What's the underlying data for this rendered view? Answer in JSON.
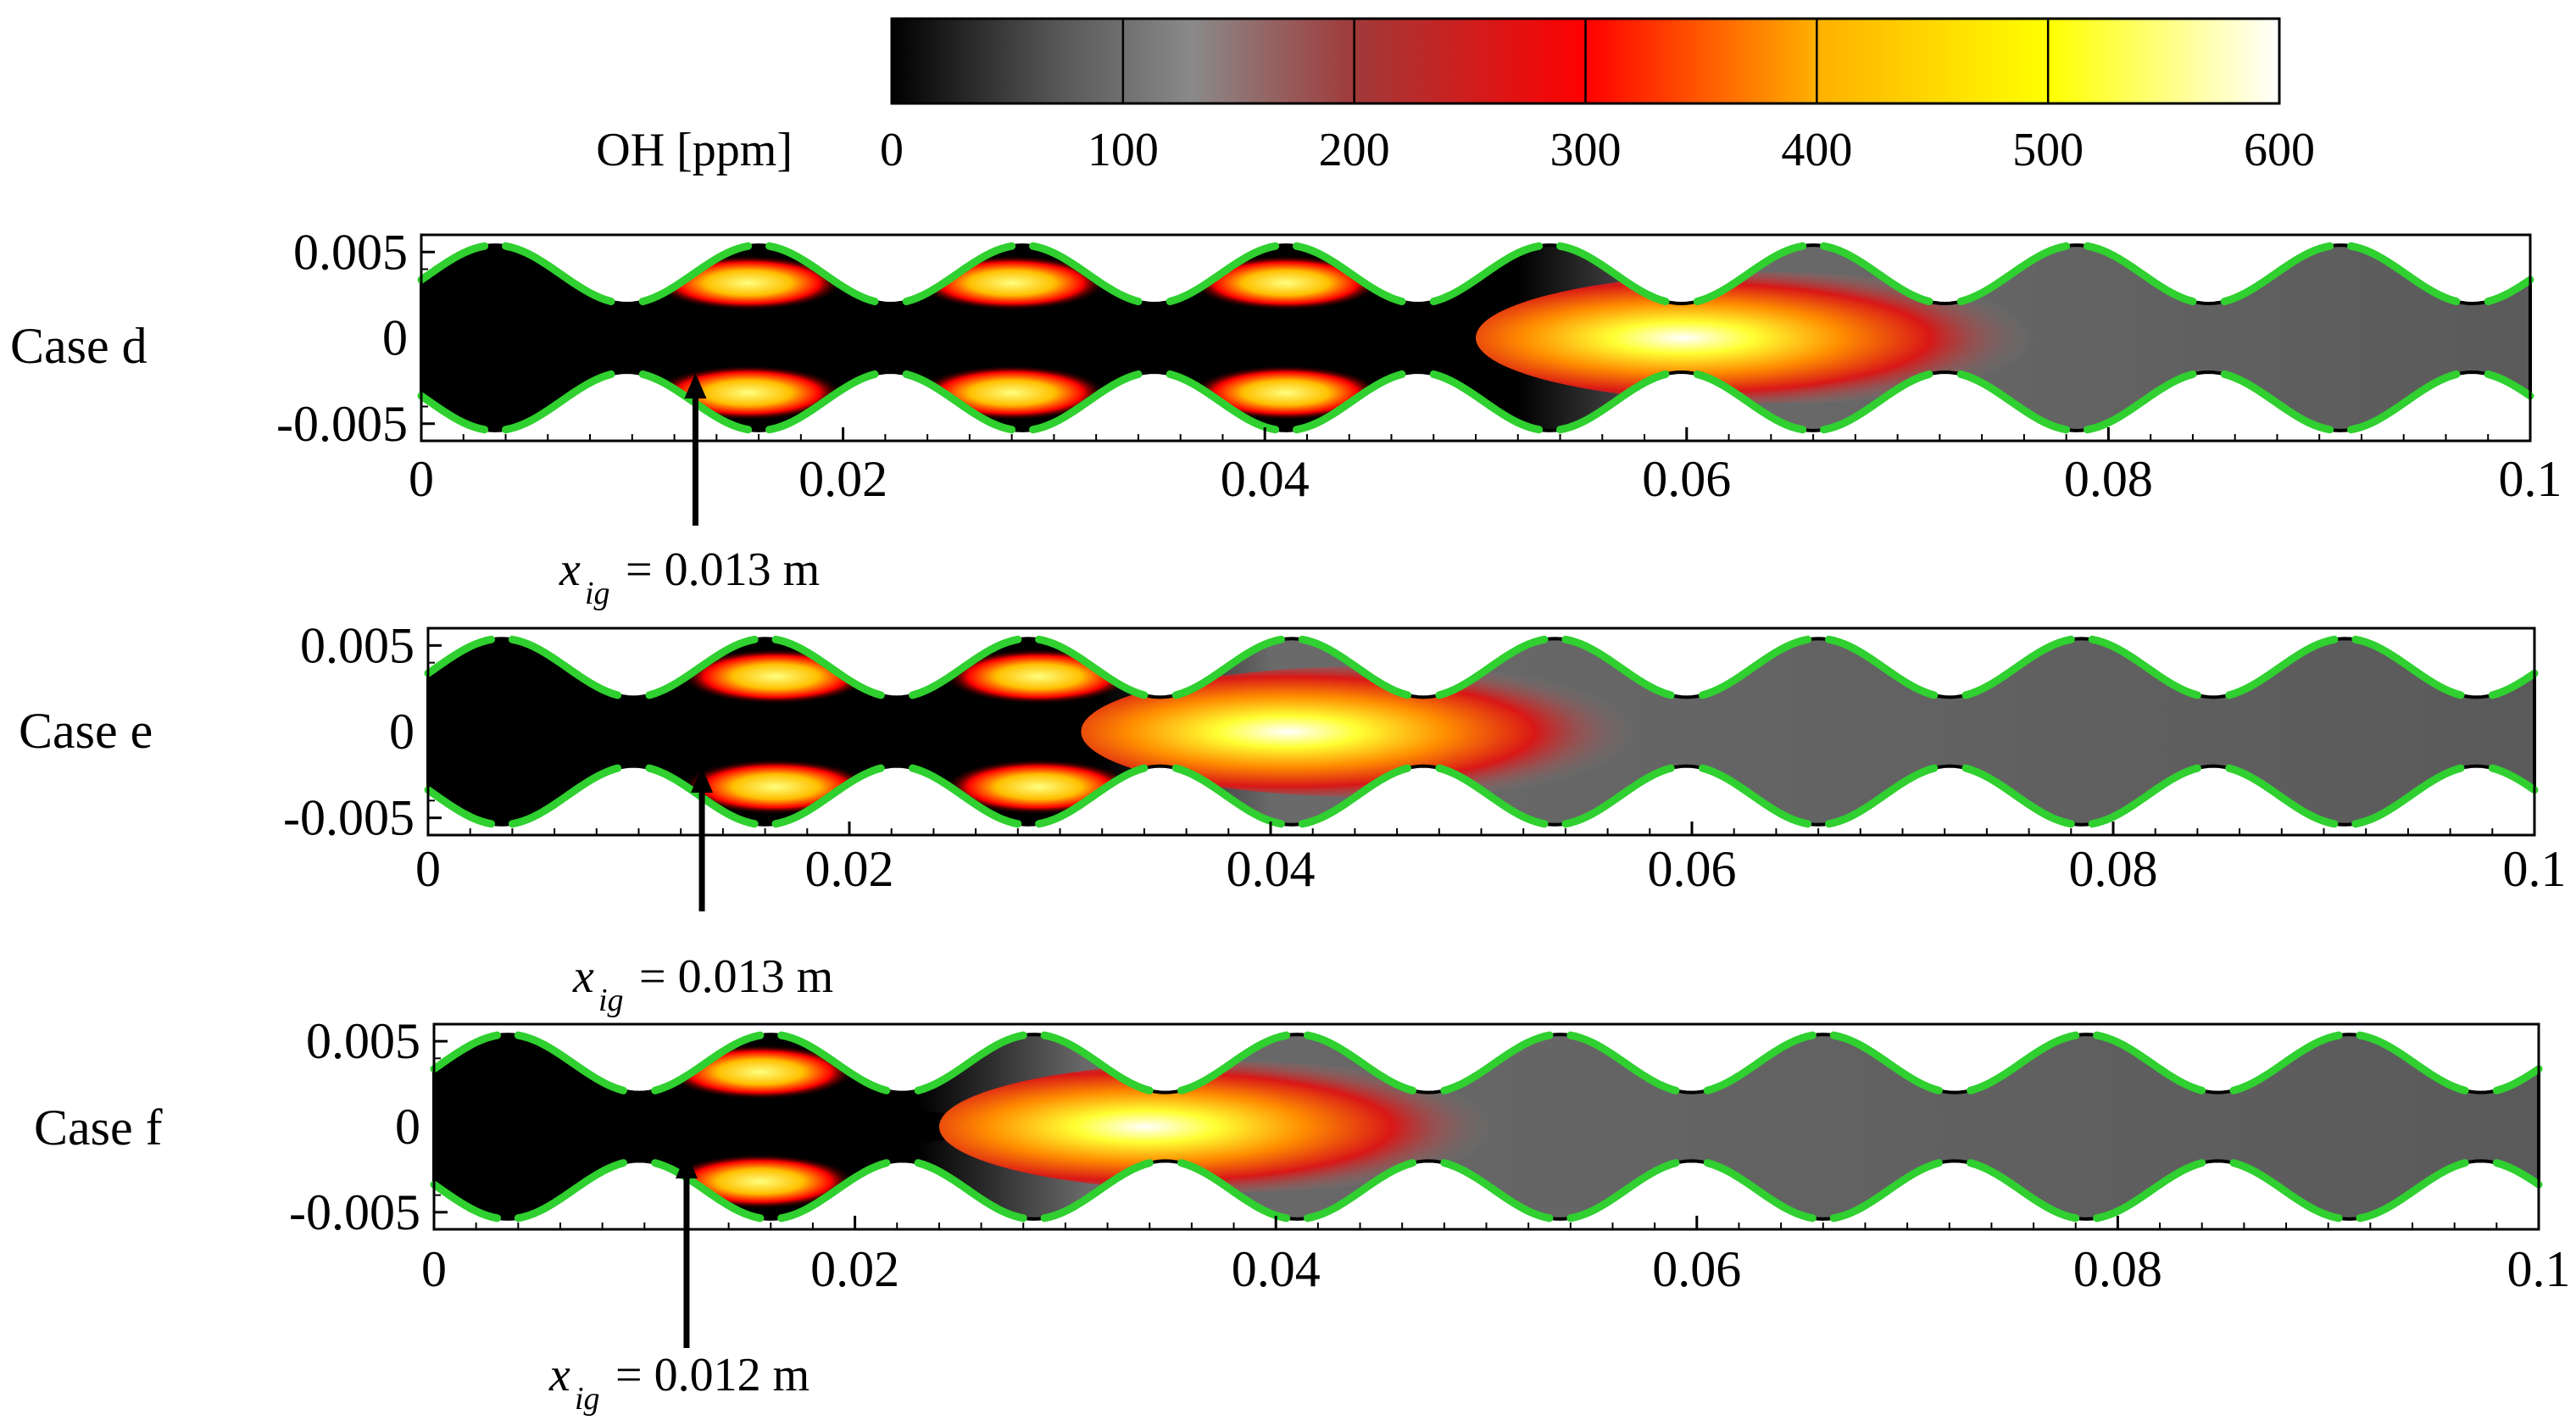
{
  "colorbar": {
    "label": "OH [ppm]",
    "ticks": [
      "0",
      "100",
      "200",
      "300",
      "400",
      "500",
      "600"
    ],
    "range": [
      0,
      600
    ],
    "stops": [
      {
        "value": 0,
        "color": "#000000"
      },
      {
        "value": 70,
        "color": "#555555"
      },
      {
        "value": 130,
        "color": "#8a8a8a"
      },
      {
        "value": 200,
        "color": "#a03a3a"
      },
      {
        "value": 300,
        "color": "#ff0000"
      },
      {
        "value": 400,
        "color": "#ffb000"
      },
      {
        "value": 500,
        "color": "#ffff00"
      },
      {
        "value": 600,
        "color": "#ffffff"
      }
    ]
  },
  "colors": {
    "wall_green": "#2fd02f",
    "outline": "#000000",
    "background": "#ffffff"
  },
  "chart_data": [
    {
      "type": "heatmap",
      "title": "Case d",
      "field": "OH [ppm]",
      "xlim": [
        0,
        0.1
      ],
      "ylim": [
        -0.006,
        0.006
      ],
      "x_ticks": [
        "0",
        "0.02",
        "0.04",
        "0.06",
        "0.08",
        "0.1"
      ],
      "y_ticks": [
        "0.005",
        "0",
        "-0.005"
      ],
      "channel_period_m": 0.0125,
      "ignition_x_m": 0.013,
      "annotation": {
        "var": "x",
        "sub": "ig",
        "text": "= 0.013 m"
      },
      "flame": {
        "tip_x_m": 0.058,
        "peak_x_m": 0.06,
        "lobes_x_m": [
          0.0155,
          0.028,
          0.041
        ]
      }
    },
    {
      "type": "heatmap",
      "title": "Case e",
      "field": "OH [ppm]",
      "xlim": [
        0,
        0.1
      ],
      "ylim": [
        -0.006,
        0.006
      ],
      "x_ticks": [
        "0",
        "0.02",
        "0.04",
        "0.06",
        "0.08",
        "0.1"
      ],
      "y_ticks": [
        "0.005",
        "0",
        "-0.005"
      ],
      "channel_period_m": 0.0125,
      "ignition_x_m": 0.013,
      "annotation": {
        "var": "x",
        "sub": "ig",
        "text": "= 0.013 m"
      },
      "flame": {
        "tip_x_m": 0.038,
        "peak_x_m": 0.041,
        "lobes_x_m": [
          0.0165,
          0.029
        ]
      }
    },
    {
      "type": "heatmap",
      "title": "Case f",
      "field": "OH [ppm]",
      "xlim": [
        0,
        0.1
      ],
      "ylim": [
        -0.006,
        0.006
      ],
      "x_ticks": [
        "0",
        "0.02",
        "0.04",
        "0.06",
        "0.08",
        "0.1"
      ],
      "y_ticks": [
        "0.005",
        "0",
        "-0.005"
      ],
      "channel_period_m": 0.0125,
      "ignition_x_m": 0.012,
      "annotation": {
        "var": "x",
        "sub": "ig",
        "text": "= 0.012 m"
      },
      "flame": {
        "tip_x_m": 0.029,
        "peak_x_m": 0.034,
        "lobes_x_m": [
          0.0155
        ]
      }
    }
  ]
}
